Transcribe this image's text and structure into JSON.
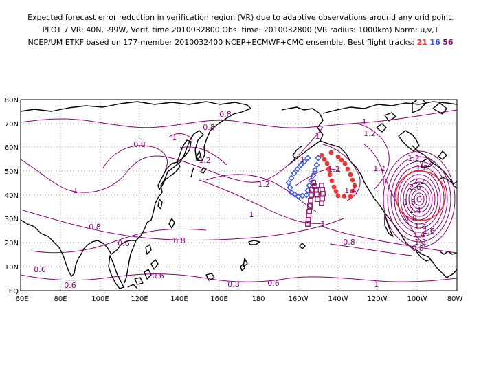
{
  "header": {
    "line1": "Expected forecast error reduction in verification region (VR) due to adaptive observations around any grid point.",
    "line2": "PLOT 7 VR: 40N, -99W, Verif. time 2010032800 Obs. time: 2010032800 (VR radius: 1000km) Norm: u,v,T",
    "line3": "NCEP/UM ETKF based on 177-member 2010032400 NCEP+ECMWF+CMC ensemble. Best flight tracks:",
    "tracks": [
      {
        "label": "21",
        "color": "#ee3333"
      },
      {
        "label": "16",
        "color": "#3355dd"
      },
      {
        "label": "56",
        "color": "#881166"
      }
    ]
  },
  "axes": {
    "lat_labels": [
      "80N",
      "70N",
      "60N",
      "50N",
      "40N",
      "30N",
      "20N",
      "10N",
      "EQ"
    ],
    "lon_labels": [
      "60E",
      "80E",
      "100E",
      "120E",
      "140E",
      "160E",
      "180",
      "160W",
      "140W",
      "120W",
      "100W",
      "80W"
    ]
  },
  "contour_labels": [
    "1",
    "0.8",
    "0.8",
    "1",
    "1.2",
    "1",
    "1.2",
    "1.2",
    "1",
    "1.2",
    "1.2",
    "1",
    "1.4",
    "1",
    "0.8",
    "0.6",
    "0.6",
    "0.8",
    "1",
    "0.8",
    "0.6",
    "0.8",
    "0.6",
    "0.6",
    "0.8",
    "2.6",
    "2.2",
    "1.8",
    "1.6",
    "1.4",
    "1.2",
    "1.2",
    "1.8",
    "2.4",
    "1",
    "1.2",
    "1.8",
    "1.6",
    "0.8"
  ],
  "colors": {
    "contour": "#880077",
    "coast": "#000000",
    "grid": "#999999",
    "verification_circle": "#ee3333",
    "track_red": "#ee3333",
    "track_blue": "#3355dd",
    "track_purple": "#881166"
  }
}
